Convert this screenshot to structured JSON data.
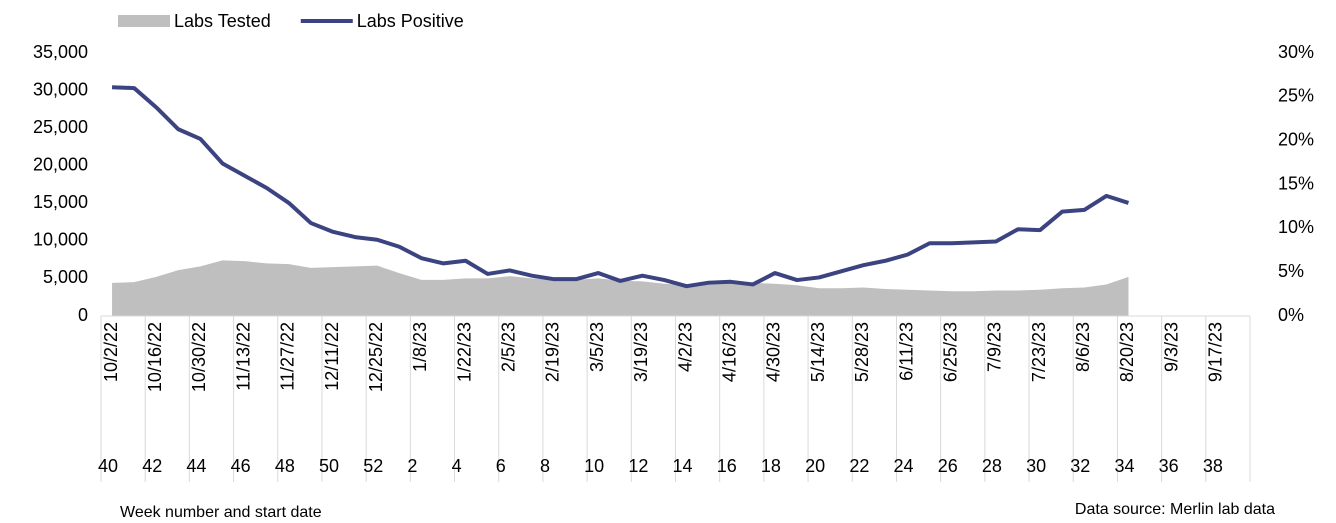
{
  "chart_data": {
    "type": "combo",
    "x_label": "Week number and start date",
    "source": "Data source: Merlin lab data",
    "categories": [
      "10/2/22",
      null,
      "10/16/22",
      null,
      "10/30/22",
      null,
      "11/13/22",
      null,
      "11/27/22",
      null,
      "12/11/22",
      null,
      "12/25/22",
      null,
      "1/8/23",
      null,
      "1/22/23",
      null,
      "2/5/23",
      null,
      "2/19/23",
      null,
      "3/5/23",
      null,
      "3/19/23",
      null,
      "4/2/23",
      null,
      "4/16/23",
      null,
      "4/30/23",
      null,
      "5/14/23",
      null,
      "5/28/23",
      null,
      "6/11/23",
      null,
      "6/25/23",
      null,
      "7/9/23",
      null,
      "7/23/23",
      null,
      "8/6/23",
      null,
      "8/20/23",
      null,
      "9/3/23",
      null,
      "9/17/23",
      null
    ],
    "week_numbers": [
      40,
      null,
      42,
      null,
      44,
      null,
      46,
      null,
      48,
      null,
      50,
      null,
      52,
      null,
      2,
      null,
      4,
      null,
      6,
      null,
      8,
      null,
      10,
      null,
      12,
      null,
      14,
      null,
      16,
      null,
      18,
      null,
      20,
      null,
      22,
      null,
      24,
      null,
      26,
      null,
      28,
      null,
      30,
      null,
      32,
      null,
      34,
      null,
      36,
      null,
      38,
      null
    ],
    "series": [
      {
        "name": "Labs Tested",
        "type": "area",
        "color": "#bfbfbf",
        "values": [
          4400,
          4500,
          5200,
          6100,
          6600,
          7400,
          7300,
          7000,
          6900,
          6400,
          6500,
          6600,
          6700,
          5700,
          4800,
          4800,
          5000,
          5000,
          5300,
          5000,
          4800,
          4800,
          5000,
          4700,
          4600,
          4300,
          4100,
          4200,
          4500,
          4400,
          4300,
          4100,
          3700,
          3700,
          3800,
          3600,
          3500,
          3400,
          3300,
          3300,
          3400,
          3400,
          3500,
          3700,
          3800,
          4200,
          5200,
          null,
          null,
          null,
          null,
          null
        ]
      },
      {
        "name": "Labs Positive",
        "type": "line",
        "axis": "y2",
        "color": "#3b4480",
        "values": [
          26.1,
          26.0,
          23.8,
          21.3,
          20.2,
          17.4,
          16.0,
          14.6,
          12.9,
          10.6,
          9.6,
          9.0,
          8.7,
          7.9,
          6.6,
          6.0,
          6.3,
          4.8,
          5.2,
          4.6,
          4.2,
          4.2,
          4.9,
          4.0,
          4.6,
          4.1,
          3.4,
          3.8,
          3.9,
          3.6,
          4.9,
          4.1,
          4.4,
          5.1,
          5.8,
          6.3,
          7.0,
          8.3,
          8.3,
          8.4,
          8.5,
          9.9,
          9.8,
          11.9,
          12.1,
          13.7,
          12.9,
          null,
          null,
          null,
          null,
          null
        ]
      }
    ],
    "ylim": [
      0,
      35000
    ],
    "yticks": [
      0,
      {
        "value": 5000,
        "label": "5,000"
      },
      {
        "value": 10000,
        "label": "10,000"
      },
      {
        "value": 15000,
        "label": "15,000"
      },
      {
        "value": 20000,
        "label": "20,000"
      },
      {
        "value": 25000,
        "label": "25,000"
      },
      {
        "value": 30000,
        "label": "30,000"
      },
      {
        "value": 35000,
        "label": "35,000"
      }
    ],
    "y2lim": [
      0,
      30
    ],
    "y2ticks": [
      {
        "value": 0,
        "label": "0%"
      },
      {
        "value": 5,
        "label": "5%"
      },
      {
        "value": 10,
        "label": "10%"
      },
      {
        "value": 15,
        "label": "15%"
      },
      {
        "value": 20,
        "label": "20%"
      },
      {
        "value": 25,
        "label": "25%"
      },
      {
        "value": 30,
        "label": "30%"
      }
    ],
    "legend": "top-left"
  }
}
